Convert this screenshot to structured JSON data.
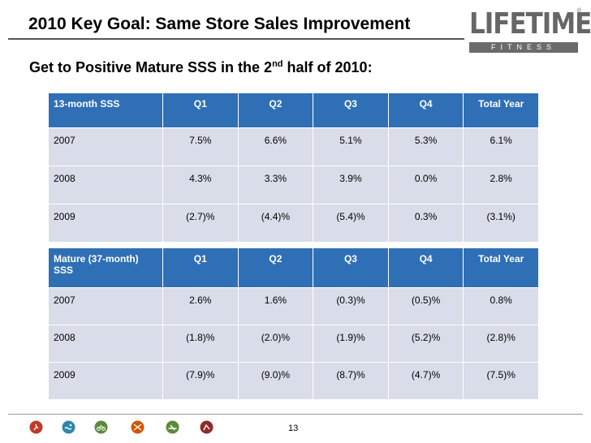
{
  "header": {
    "title": "2010 Key Goal: Same Store Sales Improvement",
    "logo_word": "LIFETIME",
    "logo_sub": "FITNESS",
    "logo_reg": "®"
  },
  "subtitle": {
    "text_before": "Get to Positive Mature SSS in the 2",
    "superscript": "nd",
    "text_after": " half of 2010:"
  },
  "table1": {
    "columns": [
      "13-month SSS",
      "Q1",
      "Q2",
      "Q3",
      "Q4",
      "Total Year"
    ],
    "rows": [
      [
        "2007",
        "7.5%",
        "6.6%",
        "5.1%",
        "5.3%",
        "6.1%"
      ],
      [
        "2008",
        "4.3%",
        "3.3%",
        "3.9%",
        "0.0%",
        "2.8%"
      ],
      [
        "2009",
        "(2.7)%",
        "(4.4)%",
        "(5.4)%",
        "0.3%",
        "(3.1%)"
      ]
    ]
  },
  "table2": {
    "columns": [
      "Mature (37-month) SSS",
      "Q1",
      "Q2",
      "Q3",
      "Q4",
      "Total Year"
    ],
    "rows": [
      [
        "2007",
        "2.6%",
        "1.6%",
        "(0.3)%",
        "(0.5)%",
        "0.8%"
      ],
      [
        "2008",
        "(1.8)%",
        "(2.0)%",
        "(1.9)%",
        "(5.2)%",
        "(2.8)%"
      ],
      [
        "2009",
        "(7.9)%",
        "(9.0)%",
        "(8.7)%",
        "(4.7)%",
        "(7.5)%"
      ]
    ]
  },
  "footer": {
    "page_number": "13",
    "icons": [
      {
        "name": "running-icon",
        "color": "#c0392b"
      },
      {
        "name": "swimming-icon",
        "color": "#2e86a8"
      },
      {
        "name": "cycling-icon",
        "color": "#5b8a3a"
      },
      {
        "name": "basketball-icon",
        "color": "#d35400"
      },
      {
        "name": "kayak-icon",
        "color": "#5b8a3a"
      },
      {
        "name": "climbing-icon",
        "color": "#8e2c2c"
      }
    ]
  },
  "colors": {
    "header_bg": "#2f6fb6",
    "cell_bg": "#d9dde9"
  }
}
